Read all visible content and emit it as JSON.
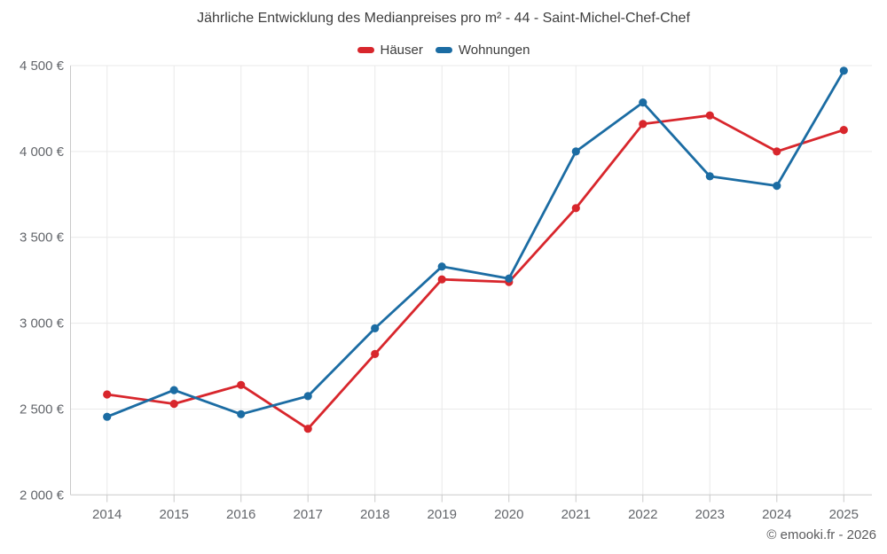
{
  "title": "Jährliche Entwicklung des Medianpreises pro m² - 44 - Saint-Michel-Chef-Chef",
  "footer": "© emooki.fr - 2026",
  "colors": {
    "hauser": "#d8262c",
    "wohnungen": "#1b6ca3",
    "grid": "#e9e9e9",
    "axis": "#c9c9c9",
    "title_text": "#3e3e3e",
    "tick_label": "#63666b",
    "footer_text": "#5b5b5d"
  },
  "chart_data": {
    "type": "line",
    "title": "Jährliche Entwicklung des Medianpreises pro m² - 44 - Saint-Michel-Chef-Chef",
    "categories": [
      "2014",
      "2015",
      "2016",
      "2017",
      "2018",
      "2019",
      "2020",
      "2021",
      "2022",
      "2023",
      "2024",
      "2025"
    ],
    "series": [
      {
        "name": "Häuser",
        "color": "#d8262c",
        "values": [
          2585,
          2530,
          2640,
          2385,
          2820,
          3255,
          3240,
          3670,
          4160,
          4210,
          4000,
          4125
        ]
      },
      {
        "name": "Wohnungen",
        "color": "#1b6ca3",
        "values": [
          2455,
          2610,
          2470,
          2575,
          2970,
          3330,
          3260,
          4000,
          4285,
          3855,
          3800,
          4470
        ]
      }
    ],
    "yticks": [
      2000,
      2500,
      3000,
      3500,
      4000,
      4500
    ],
    "ytick_labels": [
      "2 000 €",
      "2 500 €",
      "3 000 €",
      "3 500 €",
      "4 000 €",
      "4 500 €"
    ],
    "ylim": [
      2000,
      4560
    ],
    "unit": "€",
    "grid": true,
    "legend_position": "top"
  }
}
